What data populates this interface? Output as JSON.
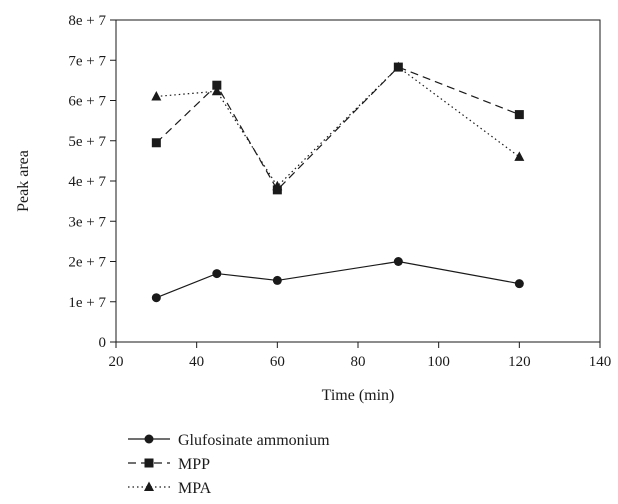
{
  "chart_data": {
    "type": "line",
    "xlabel": "Time (min)",
    "ylabel": "Peak area",
    "xlim": [
      20,
      140
    ],
    "ylim": [
      0,
      80000000
    ],
    "x_ticks": [
      20,
      40,
      60,
      80,
      100,
      120,
      140
    ],
    "x_tick_labels": [
      "20",
      "40",
      "60",
      "80",
      "100",
      "120",
      "140"
    ],
    "y_ticks": [
      0,
      10000000,
      20000000,
      30000000,
      40000000,
      50000000,
      60000000,
      70000000,
      80000000
    ],
    "y_tick_labels": [
      "0",
      "1e + 7",
      "2e + 7",
      "3e + 7",
      "4e + 7",
      "5e + 7",
      "6e + 7",
      "7e + 7",
      "8e + 7"
    ],
    "grid": false,
    "legend_position": "bottom-left",
    "x": [
      30,
      45,
      60,
      90,
      120
    ],
    "series": [
      {
        "name": "Glufosinate ammonium",
        "values": [
          11000000,
          17000000,
          15300000,
          20000000,
          14500000
        ],
        "marker": "circle",
        "line_style": "solid"
      },
      {
        "name": "MPP",
        "values": [
          49500000,
          63800000,
          37800000,
          68300000,
          56500000
        ],
        "marker": "square",
        "line_style": "dashed"
      },
      {
        "name": "MPA",
        "values": [
          61000000,
          62300000,
          38700000,
          68300000,
          46000000
        ],
        "marker": "triangle",
        "line_style": "dotted"
      }
    ]
  }
}
